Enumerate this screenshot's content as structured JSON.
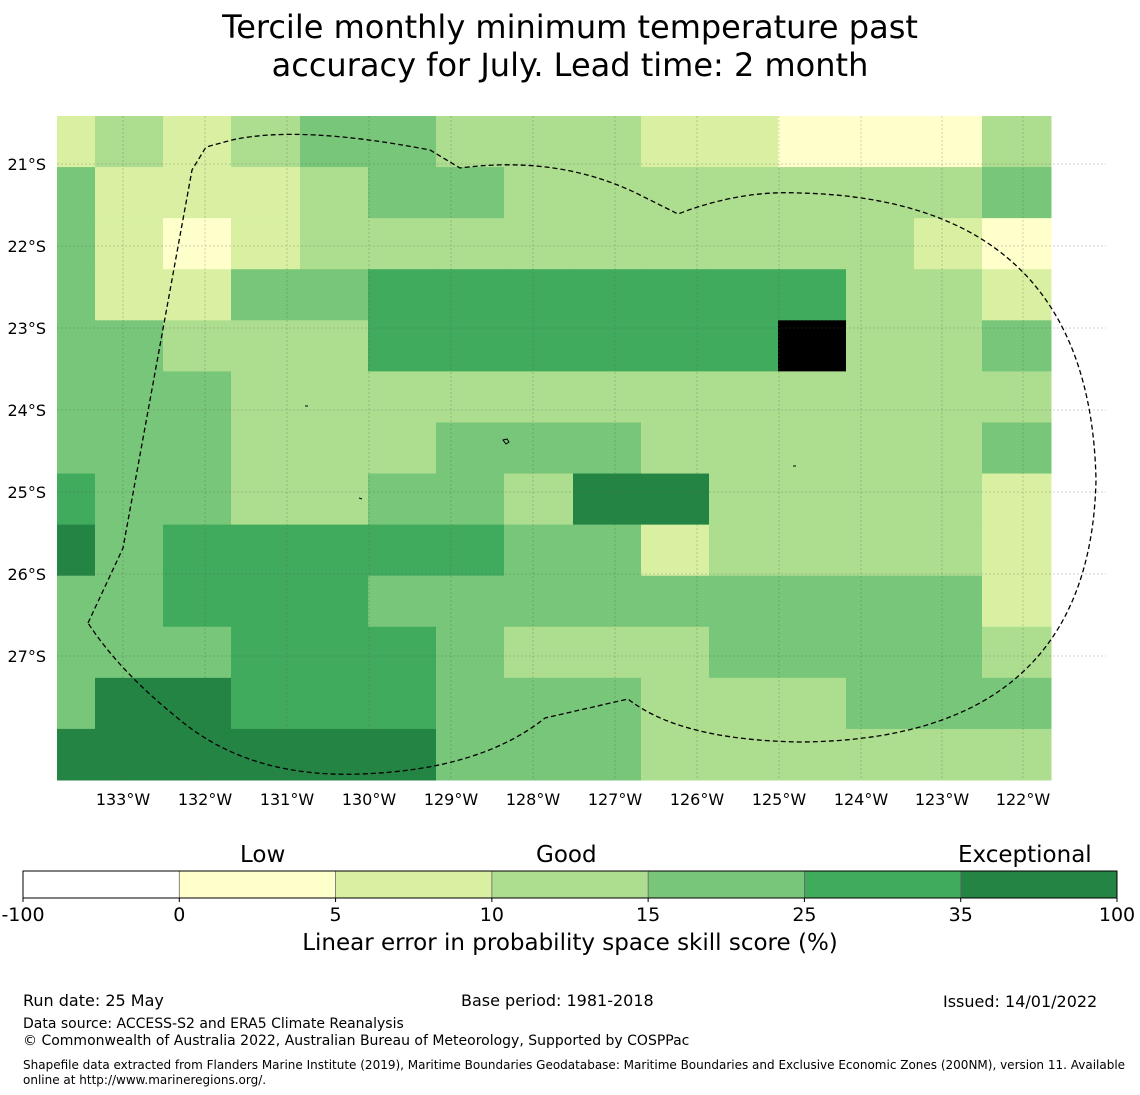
{
  "title_line1": "Tercile monthly minimum temperature past",
  "title_line2": "accuracy for July. Lead time: 2 month",
  "map": {
    "lat_labels": [
      "21°S",
      "22°S",
      "23°S",
      "24°S",
      "25°S",
      "26°S",
      "27°S"
    ],
    "lon_labels": [
      "133°W",
      "132°W",
      "131°W",
      "130°W",
      "129°W",
      "128°W",
      "127°W",
      "126°W",
      "125°W",
      "124°W",
      "123°W",
      "122°W"
    ],
    "grid_cols": 15,
    "grid_rows": 13,
    "grid_values": [
      "121233222110002",
      "311123322222223",
      "310122222222210",
      "311334444444221",
      "332224444448223",
      "333222222222222",
      "333222333222223",
      "433223325522221",
      "534444433122221",
      "334443333333331",
      "333444322233332",
      "355444333222333",
      "555555333222222"
    ],
    "colors": {
      "0": "#ffffcc",
      "1": "#d9f0a3",
      "2": "#addd8e",
      "3": "#78c679",
      "4": "#41ab5d",
      "5": "#238443"
    }
  },
  "colorbar": {
    "category_low": "Low",
    "category_good": "Good",
    "category_exceptional": "Exceptional",
    "ticks": [
      "-100",
      "0",
      "5",
      "10",
      "15",
      "25",
      "35",
      "100"
    ],
    "colors": [
      "#ffffff",
      "#ffffcc",
      "#d9f0a3",
      "#addd8e",
      "#78c679",
      "#41ab5d",
      "#238443"
    ],
    "label": "Linear error in probability space skill score (%)"
  },
  "footer": {
    "run_date": "Run date: 25 May",
    "base_period": "Base period: 1981-2018",
    "issued": "Issued: 14/01/2022",
    "data_source": "Data source: ACCESS-S2 and ERA5 Climate Reanalysis",
    "copyright": "© Commonwealth of Australia 2022, Australian Bureau of Meteorology, Supported by COSPPac",
    "shapefile_line1": "Shapefile data extracted from Flanders Marine Institute (2019), Maritime Boundaries Geodatabase: Maritime Boundaries and Exclusive Economic Zones (200NM), version 11. Available",
    "shapefile_line2": "online at http://www.marineregions.org/."
  }
}
